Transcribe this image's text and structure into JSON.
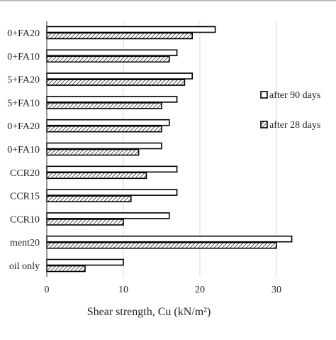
{
  "chart_data": {
    "type": "bar",
    "orientation": "horizontal",
    "categories": [
      "0+FA20",
      "0+FA10",
      "5+FA20",
      "5+FA10",
      "0+FA20",
      "0+FA10",
      "CCR20",
      "CCR15",
      "CCR10",
      "ment20",
      "oil only"
    ],
    "series": [
      {
        "name": "after 90 days",
        "values": [
          22,
          17,
          19,
          17,
          16,
          15,
          17,
          17,
          16,
          32,
          10
        ],
        "pattern": "hollow"
      },
      {
        "name": "after 28 days",
        "values": [
          19,
          16,
          18,
          15,
          15,
          12,
          13,
          11,
          10,
          30,
          5
        ],
        "pattern": "hatched"
      }
    ],
    "xlabel": "Shear strength, Cu (kN/m²)",
    "xlim": [
      0,
      40
    ],
    "xticks": [
      "0",
      "10",
      "20",
      "30"
    ],
    "grid": "vertical",
    "legend_position": "right"
  },
  "colors": {
    "bar_stroke": "#000000",
    "hatch": "#555555",
    "grid": "#d6e3ea",
    "axis": "#333333"
  }
}
